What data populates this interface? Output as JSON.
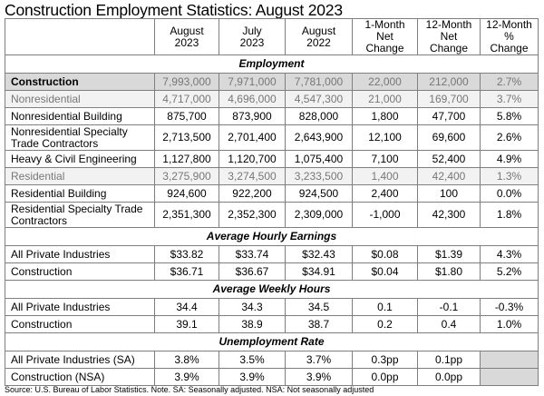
{
  "title": "Construction Employment Statistics: August 2023",
  "columns": [
    {
      "l1": "August",
      "l2": "2023"
    },
    {
      "l1": "July",
      "l2": "2023"
    },
    {
      "l1": "August",
      "l2": "2022"
    },
    {
      "l1": "1-Month",
      "l2": "Net Change"
    },
    {
      "l1": "12-Month",
      "l2": "Net Change"
    },
    {
      "l1": "12-Month",
      "l2": "% Change"
    }
  ],
  "sections": [
    {
      "title": "Employment",
      "rows": [
        {
          "style": "total",
          "label": "Construction",
          "values": [
            "7,993,000",
            "7,971,000",
            "7,781,000",
            "22,000",
            "212,000",
            "2.7%"
          ]
        },
        {
          "style": "sub",
          "label": "Nonresidential",
          "values": [
            "4,717,000",
            "4,696,000",
            "4,547,300",
            "21,000",
            "169,700",
            "3.7%"
          ]
        },
        {
          "style": "",
          "label": "Nonresidential Building",
          "values": [
            "875,700",
            "873,900",
            "828,000",
            "1,800",
            "47,700",
            "5.8%"
          ]
        },
        {
          "style": "tall",
          "label": "Nonresidential Specialty Trade Contractors",
          "values": [
            "2,713,500",
            "2,701,400",
            "2,643,900",
            "12,100",
            "69,600",
            "2.6%"
          ]
        },
        {
          "style": "",
          "label": "Heavy & Civil Engineering",
          "values": [
            "1,127,800",
            "1,120,700",
            "1,075,400",
            "7,100",
            "52,400",
            "4.9%"
          ]
        },
        {
          "style": "sub",
          "label": "Residential",
          "values": [
            "3,275,900",
            "3,274,500",
            "3,233,500",
            "1,400",
            "42,400",
            "1.3%"
          ]
        },
        {
          "style": "",
          "label": "Residential Building",
          "values": [
            "924,600",
            "922,200",
            "924,500",
            "2,400",
            "100",
            "0.0%"
          ]
        },
        {
          "style": "tall",
          "label": "Residential Specialty Trade Contractors",
          "values": [
            "2,351,300",
            "2,352,300",
            "2,309,000",
            "-1,000",
            "42,300",
            "1.8%"
          ]
        }
      ]
    },
    {
      "title": "Average Hourly Earnings",
      "rows": [
        {
          "style": "",
          "label": "All Private Industries",
          "values": [
            "$33.82",
            "$33.74",
            "$32.43",
            "$0.08",
            "$1.39",
            "4.3%"
          ]
        },
        {
          "style": "",
          "label": "Construction",
          "values": [
            "$36.71",
            "$36.67",
            "$34.91",
            "$0.04",
            "$1.80",
            "5.2%"
          ]
        }
      ]
    },
    {
      "title": "Average Weekly Hours",
      "rows": [
        {
          "style": "",
          "label": "All Private Industries",
          "values": [
            "34.4",
            "34.3",
            "34.5",
            "0.1",
            "-0.1",
            "-0.3%"
          ]
        },
        {
          "style": "",
          "label": "Construction",
          "values": [
            "39.1",
            "38.9",
            "38.7",
            "0.2",
            "0.4",
            "1.0%"
          ]
        }
      ]
    },
    {
      "title": "Unemployment Rate",
      "rows": [
        {
          "style": "",
          "label": "All Private Industries (SA)",
          "values": [
            "3.8%",
            "3.5%",
            "3.7%",
            "0.3pp",
            "0.1pp",
            ""
          ]
        },
        {
          "style": "",
          "label": "Construction (NSA)",
          "values": [
            "3.9%",
            "3.9%",
            "3.9%",
            "0.0pp",
            "0.0pp",
            ""
          ]
        }
      ]
    }
  ],
  "source": "Source: U.S. Bureau of Labor Statistics.  Note. SA: Seasonally adjusted.  NSA: Not seasonally adjusted"
}
